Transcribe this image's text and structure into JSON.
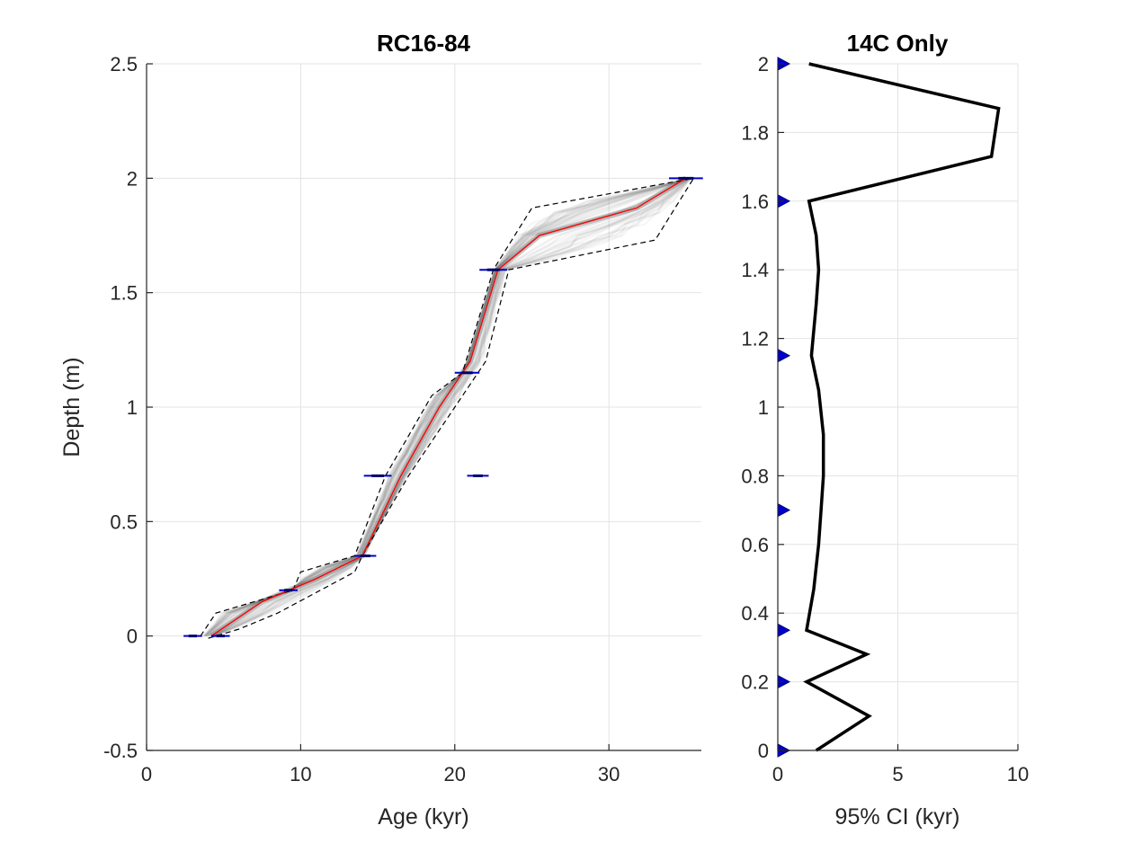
{
  "chart_data": [
    {
      "type": "line",
      "title": "RC16-84",
      "xlabel": "Age (kyr)",
      "ylabel": "Depth (m)",
      "xlim": [
        0,
        36
      ],
      "ylim": [
        -0.5,
        2.5
      ],
      "xticks": [
        "0",
        "10",
        "20",
        "30"
      ],
      "xtick_values": [
        0,
        10,
        20,
        30
      ],
      "yticks": [
        "-0.5",
        "0",
        "0.5",
        "1",
        "1.5",
        "2",
        "2.5"
      ],
      "ytick_values": [
        -0.5,
        0,
        0.5,
        1,
        1.5,
        2,
        2.5
      ],
      "grid": true,
      "colors": {
        "median": "#ff0000",
        "bounds": "#000000",
        "dates": "#0000cc",
        "ensemble": "#808080"
      },
      "median": {
        "age": [
          4.2,
          7.5,
          11.0,
          14.0,
          16.5,
          19.0,
          21.0,
          22.8,
          25.5,
          31.8,
          35.0
        ],
        "depth": [
          0.0,
          0.15,
          0.25,
          0.35,
          0.7,
          1.0,
          1.2,
          1.6,
          1.75,
          1.87,
          2.0
        ]
      },
      "upper_bound": {
        "age": [
          3.5,
          4.5,
          9.5,
          10.0,
          13.5,
          15.5,
          18.5,
          20.5,
          22.5,
          25.0,
          35.5
        ],
        "depth": [
          0.0,
          0.1,
          0.2,
          0.28,
          0.35,
          0.7,
          1.05,
          1.15,
          1.6,
          1.87,
          2.0
        ]
      },
      "lower_bound": {
        "age": [
          4.0,
          6.0,
          8.5,
          13.5,
          14.0,
          17.0,
          20.0,
          22.0,
          23.5,
          33.0,
          35.5
        ],
        "depth": [
          -0.01,
          0.03,
          0.1,
          0.28,
          0.35,
          0.7,
          1.0,
          1.2,
          1.6,
          1.73,
          2.0
        ]
      },
      "dates": [
        {
          "age": 3.0,
          "depth": 0.0,
          "err": 0.6
        },
        {
          "age": 4.8,
          "depth": 0.0,
          "err": 0.6
        },
        {
          "age": 9.2,
          "depth": 0.2,
          "err": 0.6
        },
        {
          "age": 14.2,
          "depth": 0.35,
          "err": 0.7
        },
        {
          "age": 15.0,
          "depth": 0.7,
          "err": 0.9
        },
        {
          "age": 21.5,
          "depth": 0.7,
          "err": 0.7
        },
        {
          "age": 20.8,
          "depth": 1.15,
          "err": 0.8
        },
        {
          "age": 22.5,
          "depth": 1.6,
          "err": 0.9
        },
        {
          "age": 35.0,
          "depth": 2.0,
          "err": 1.1
        }
      ]
    },
    {
      "type": "line",
      "title": "14C Only",
      "xlabel": "95% CI (kyr)",
      "ylabel": "",
      "xlim": [
        0,
        10
      ],
      "ylim": [
        0,
        2
      ],
      "xticks": [
        "0",
        "5",
        "10"
      ],
      "xtick_values": [
        0,
        5,
        10
      ],
      "yticks": [
        "0",
        "0.2",
        "0.4",
        "0.6",
        "0.8",
        "1",
        "1.2",
        "1.4",
        "1.6",
        "1.8",
        "2"
      ],
      "ytick_values": [
        0,
        0.2,
        0.4,
        0.6,
        0.8,
        1.0,
        1.2,
        1.4,
        1.6,
        1.8,
        2.0
      ],
      "grid": true,
      "colors": {
        "line": "#000000",
        "markers": "#0000cc"
      },
      "series": [
        {
          "ci": [
            1.6,
            3.8,
            1.2,
            3.7,
            1.2,
            1.5,
            1.7,
            1.8,
            1.9,
            1.9,
            1.7,
            1.4,
            1.6,
            1.7,
            1.6,
            1.3,
            8.9,
            9.2,
            1.3
          ],
          "depth": [
            0.0,
            0.1,
            0.2,
            0.28,
            0.35,
            0.47,
            0.6,
            0.7,
            0.8,
            0.92,
            1.05,
            1.15,
            1.3,
            1.4,
            1.5,
            1.6,
            1.73,
            1.87,
            2.0
          ]
        }
      ],
      "marker_depths": [
        0.0,
        0.2,
        0.35,
        0.7,
        1.15,
        1.6,
        2.0
      ]
    }
  ]
}
